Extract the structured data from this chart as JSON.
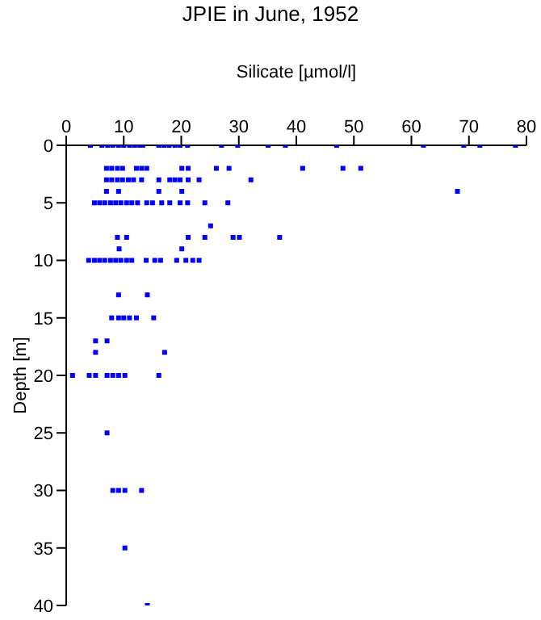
{
  "chart_data": {
    "type": "scatter",
    "title": "JPIE in June, 1952",
    "xlabel": "Silicate [µmol/l]",
    "ylabel": "Depth [m]",
    "xlim": [
      0,
      80
    ],
    "xticks": [
      0,
      10,
      20,
      30,
      40,
      50,
      60,
      70,
      80
    ],
    "ylim": [
      40,
      0
    ],
    "yticks": [
      0,
      5,
      10,
      15,
      20,
      25,
      30,
      35,
      40
    ],
    "marker": "square",
    "series": [
      {
        "color": "#0000ff",
        "x": [
          4.2,
          6.2,
          7.2,
          8.1,
          9.1,
          10,
          11,
          11.9,
          12.8,
          13.3,
          16.1,
          17,
          17.9,
          18.9,
          19.8,
          21.1,
          27,
          29.8,
          35.1,
          38.1,
          47,
          62.1,
          69.1,
          71.9,
          78.1,
          7,
          7.9,
          8.9,
          9.8,
          12.2,
          13.1,
          14,
          20.1,
          21.2,
          26.1,
          28.3,
          41.1,
          48.1,
          51.2,
          7,
          7.9,
          8.9,
          9.8,
          10.8,
          11.7,
          13.1,
          16.1,
          18,
          18.9,
          19.8,
          21.2,
          23.1,
          32.1,
          7,
          9.1,
          16.1,
          20.1,
          68,
          4.9,
          5.8,
          6.7,
          7.7,
          8.6,
          9.5,
          10.5,
          11.4,
          12.4,
          14,
          15,
          16.6,
          18,
          19.8,
          21.1,
          24.1,
          28.1,
          25.1,
          8.9,
          10.5,
          21.2,
          24.1,
          29,
          30.1,
          37.1,
          9.2,
          20.1,
          3.9,
          4.9,
          5.8,
          6.7,
          7.7,
          8.6,
          9.5,
          10.5,
          11.4,
          13.9,
          15.4,
          16.4,
          19.2,
          20.8,
          22,
          23.1,
          9.1,
          14.1,
          7.9,
          9.1,
          10,
          11,
          12.2,
          15.2,
          5.1,
          7.1,
          5.1,
          17.1,
          1.1,
          4,
          5.1,
          7.1,
          8.1,
          9.1,
          10.2,
          16.1,
          7.1,
          8.1,
          9.1,
          10.2,
          13.1,
          10.2,
          14.1
        ],
        "values": [
          0,
          0,
          0,
          0,
          0,
          0,
          0,
          0,
          0,
          0,
          0,
          0,
          0,
          0,
          0,
          0,
          0,
          0,
          0,
          0,
          0,
          0,
          0,
          0,
          0,
          2,
          2,
          2,
          2,
          2,
          2,
          2,
          2,
          2,
          2,
          2,
          2,
          2,
          2,
          3,
          3,
          3,
          3,
          3,
          3,
          3,
          3,
          3,
          3,
          3,
          3,
          3,
          3,
          4,
          4,
          4,
          4,
          4,
          5,
          5,
          5,
          5,
          5,
          5,
          5,
          5,
          5,
          5,
          5,
          5,
          5,
          5,
          5,
          5,
          5,
          7,
          8,
          8,
          8,
          8,
          8,
          8,
          8,
          9,
          9,
          10,
          10,
          10,
          10,
          10,
          10,
          10,
          10,
          10,
          10,
          10,
          10,
          10,
          10,
          10,
          10,
          13,
          13,
          15,
          15,
          15,
          15,
          15,
          15,
          17,
          17,
          18,
          18,
          20,
          20,
          20,
          20,
          20,
          20,
          20,
          20,
          25,
          30,
          30,
          30,
          30,
          35,
          40
        ]
      }
    ]
  }
}
